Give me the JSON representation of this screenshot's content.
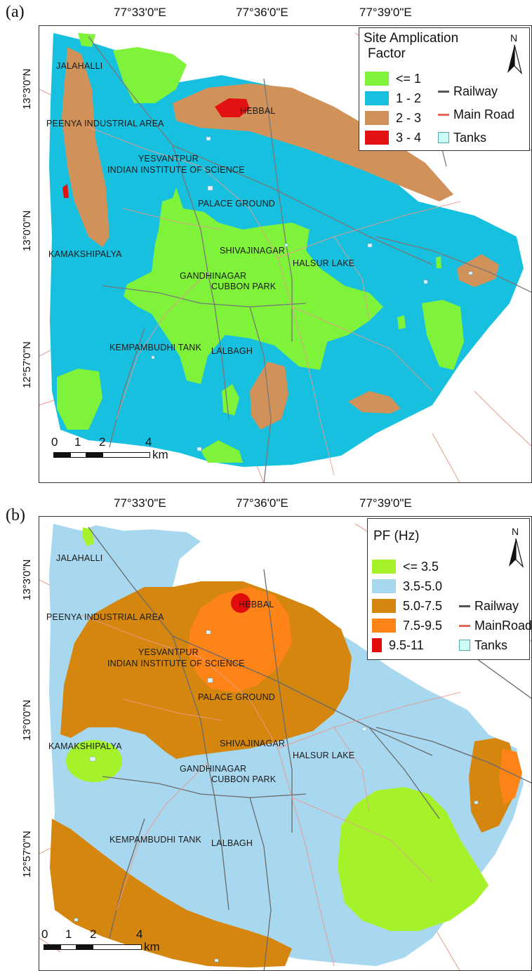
{
  "figure": {
    "panels": [
      {
        "tag": "(a)",
        "lon_labels": [
          "77°33'0\"E",
          "77°36'0\"E",
          "77°39'0\"E"
        ],
        "lat_labels": [
          "13°3'0\"N",
          "13°0'0\"N",
          "12°57'0\"N"
        ],
        "legend": {
          "title_line1": "Site Amplication",
          "title_line2": "Factor",
          "classes": [
            {
              "label": "<= 1",
              "color": "#7ff23a"
            },
            {
              "label": "1 - 2",
              "color": "#18c0e0"
            },
            {
              "label": "2 - 3",
              "color": "#d1925a"
            },
            {
              "label": "3 - 4",
              "color": "#e31212"
            }
          ],
          "symbols": {
            "railway": "Railway",
            "road": "Main Road",
            "tanks": "Tanks"
          }
        },
        "places": {
          "jalahalli": "JALAHALLI",
          "peenya": "PEENYA INDUSTRIAL AREA",
          "hebbal": "HEBBAL",
          "yesvantpur": "YESVANTPUR",
          "iisc": "INDIAN INSTITUTE OF SCIENCE",
          "palace": "PALACE GROUND",
          "kamakshipalya": "KAMAKSHIPALYA",
          "shivajinagar": "SHIVAJINAGAR",
          "halsur": "HALSUR LAKE",
          "gandhinagar": "GANDHINAGAR",
          "cubbon": "CUBBON PARK",
          "kempambudhi": "KEMPAMBUDHI TANK",
          "lalbagh": "LALBAGH"
        },
        "north": "N",
        "scale": {
          "ticks": [
            "0",
            "1",
            "2",
            "4"
          ],
          "unit": "km"
        }
      },
      {
        "tag": "(b)",
        "lon_labels": [
          "77°33'0\"E",
          "77°36'0\"E",
          "77°39'0\"E"
        ],
        "lat_labels": [
          "13°3'0\"N",
          "13°0'0\"N",
          "12°57'0\"N"
        ],
        "legend": {
          "title_line1": "PF (Hz)",
          "classes": [
            {
              "label": "<= 3.5",
              "color": "#a6f22a"
            },
            {
              "label": "3.5-5.0",
              "color": "#a8d8ef"
            },
            {
              "label": "5.0-7.5",
              "color": "#d4860f"
            },
            {
              "label": "7.5-9.5",
              "color": "#ff8418"
            },
            {
              "label": "9.5-11",
              "color": "#e30c0c"
            }
          ],
          "symbols": {
            "railway": "Railway",
            "road": "MainRoad",
            "tanks": "Tanks"
          }
        },
        "places": {
          "jalahalli": "JALAHALLI",
          "peenya": "PEENYA INDUSTRIAL AREA",
          "hebbal": "HEBBAL",
          "yesvantpur": "YESVANTPUR",
          "iisc": "INDIAN INSTITUTE OF SCIENCE",
          "palace": "PALACE GROUND",
          "kamakshipalya": "KAMAKSHIPALYA",
          "shivajinagar": "SHIVAJINAGAR",
          "halsur": "HALSUR LAKE",
          "gandhinagar": "GANDHINAGAR",
          "cubbon": "CUBBON PARK",
          "kempambudhi": "KEMPAMBUDHI TANK",
          "lalbagh": "LALBAGH"
        },
        "north": "N",
        "scale": {
          "ticks": [
            "0",
            "1",
            "2",
            "4"
          ],
          "unit": "km"
        }
      }
    ]
  },
  "colors": {
    "railway": "#777777",
    "road": "#e89a8e",
    "frame": "#333333"
  }
}
